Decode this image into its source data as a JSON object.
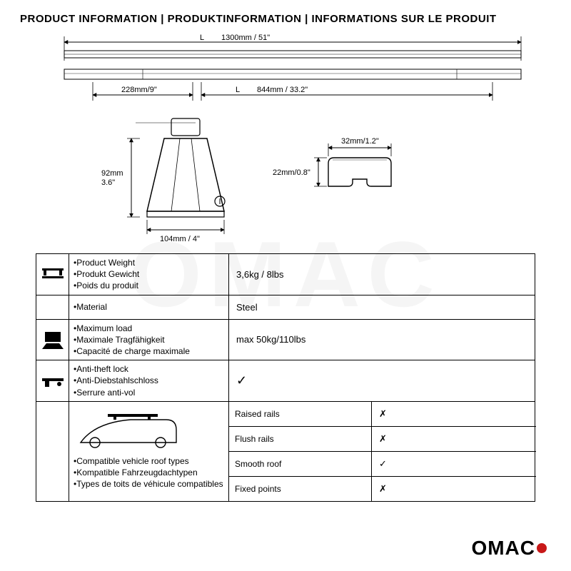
{
  "header": {
    "title": "PRODUCT INFORMATION | PRODUKTINFORMATION | INFORMATIONS SUR LE PRODUIT"
  },
  "colors": {
    "line": "#000000",
    "brand_red": "#c81818",
    "fill_light": "#ffffff"
  },
  "diagram": {
    "overall": {
      "letter": "L",
      "value": "1300mm / 51\""
    },
    "left_offset": {
      "value": "228mm/9\""
    },
    "inner": {
      "letter": "L",
      "value": "844mm / 33.2\""
    },
    "foot": {
      "height": "92mm\n3.6\"",
      "base": "104mm / 4\""
    },
    "profile": {
      "width": "32mm/1.2\"",
      "height": "22mm/0.8\""
    }
  },
  "table": {
    "weight": {
      "labels": [
        "•Product Weight",
        "•Produkt Gewicht",
        "•Poids du produit"
      ],
      "value": "3,6kg / 8lbs"
    },
    "material": {
      "labels": [
        "•Material"
      ],
      "value": "Steel"
    },
    "load": {
      "labels": [
        "•Maximum load",
        "•Maximale Tragfähigkeit",
        "•Capacité de charge maximale"
      ],
      "value": "max 50kg/110lbs"
    },
    "lock": {
      "labels": [
        "•Anti-theft lock",
        "•Anti-Diebstahlschloss",
        "•Serrure anti-vol"
      ],
      "value": "✓"
    },
    "roof": {
      "labels": [
        "•Compatible vehicle roof types",
        "•Kompatible Fahrzeugdachtypen",
        "•Types de toits de véhicule compatibles"
      ],
      "options": [
        {
          "label": "Raised rails",
          "value": "✗"
        },
        {
          "label": "Flush rails",
          "value": "✗"
        },
        {
          "label": "Smooth roof",
          "value": "✓"
        },
        {
          "label": "Fixed points",
          "value": "✗"
        }
      ]
    }
  },
  "brand": {
    "name": "OMAC"
  }
}
